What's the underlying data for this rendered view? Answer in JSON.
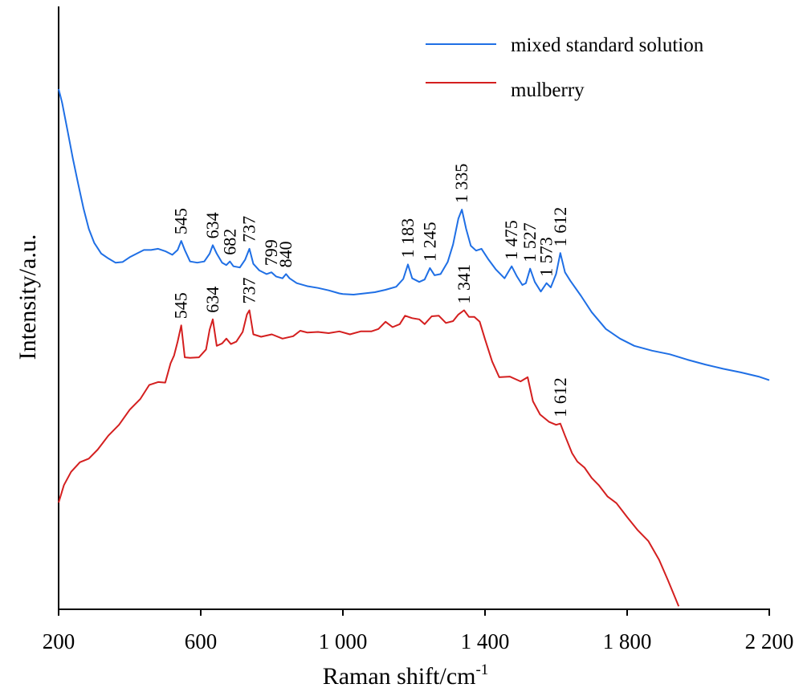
{
  "chart_data": {
    "type": "line",
    "title": "",
    "xlabel": "Raman shift/cm",
    "xlabel_superscript": "-1",
    "ylabel": "Intensity/a.u.",
    "xlim": [
      200,
      2200
    ],
    "ylim": [
      0,
      100
    ],
    "y_ticks_shown": false,
    "grid": false,
    "legend_position": "top-right",
    "x_ticks": [
      {
        "value": 200,
        "label": "200"
      },
      {
        "value": 600,
        "label": "600"
      },
      {
        "value": 1000,
        "label": "1 000"
      },
      {
        "value": 1400,
        "label": "1 400"
      },
      {
        "value": 1800,
        "label": "1 800"
      },
      {
        "value": 2200,
        "label": "2 200"
      }
    ],
    "series": [
      {
        "name": "mixed standard solution",
        "color": "#1f6fe5",
        "points": [
          [
            200,
            86.3
          ],
          [
            210,
            84.0
          ],
          [
            225,
            79.4
          ],
          [
            240,
            74.8
          ],
          [
            255,
            70.6
          ],
          [
            270,
            66.5
          ],
          [
            285,
            63.1
          ],
          [
            300,
            60.8
          ],
          [
            320,
            59.0
          ],
          [
            340,
            58.2
          ],
          [
            360,
            57.5
          ],
          [
            380,
            57.6
          ],
          [
            400,
            58.4
          ],
          [
            420,
            59.0
          ],
          [
            440,
            59.6
          ],
          [
            460,
            59.6
          ],
          [
            480,
            59.8
          ],
          [
            500,
            59.4
          ],
          [
            520,
            58.8
          ],
          [
            535,
            59.6
          ],
          [
            545,
            61.1
          ],
          [
            555,
            59.6
          ],
          [
            570,
            57.7
          ],
          [
            590,
            57.5
          ],
          [
            610,
            57.7
          ],
          [
            625,
            59.0
          ],
          [
            634,
            60.4
          ],
          [
            645,
            59.0
          ],
          [
            660,
            57.5
          ],
          [
            672,
            57.1
          ],
          [
            682,
            57.7
          ],
          [
            692,
            56.9
          ],
          [
            710,
            56.7
          ],
          [
            725,
            58.0
          ],
          [
            737,
            59.8
          ],
          [
            748,
            57.3
          ],
          [
            765,
            56.2
          ],
          [
            785,
            55.6
          ],
          [
            799,
            55.9
          ],
          [
            812,
            55.2
          ],
          [
            830,
            54.9
          ],
          [
            840,
            55.6
          ],
          [
            850,
            54.9
          ],
          [
            870,
            54.1
          ],
          [
            900,
            53.6
          ],
          [
            930,
            53.3
          ],
          [
            960,
            52.9
          ],
          [
            990,
            52.4
          ],
          [
            1000,
            52.3
          ],
          [
            1030,
            52.2
          ],
          [
            1060,
            52.4
          ],
          [
            1090,
            52.6
          ],
          [
            1120,
            53.0
          ],
          [
            1150,
            53.5
          ],
          [
            1170,
            54.8
          ],
          [
            1183,
            57.2
          ],
          [
            1195,
            54.9
          ],
          [
            1215,
            54.3
          ],
          [
            1230,
            54.7
          ],
          [
            1245,
            56.6
          ],
          [
            1258,
            55.4
          ],
          [
            1275,
            55.6
          ],
          [
            1295,
            57.6
          ],
          [
            1310,
            60.5
          ],
          [
            1325,
            64.8
          ],
          [
            1335,
            66.3
          ],
          [
            1347,
            63.1
          ],
          [
            1360,
            60.3
          ],
          [
            1375,
            59.5
          ],
          [
            1390,
            59.8
          ],
          [
            1410,
            58.0
          ],
          [
            1430,
            56.4
          ],
          [
            1455,
            54.9
          ],
          [
            1475,
            56.9
          ],
          [
            1490,
            55.2
          ],
          [
            1505,
            53.8
          ],
          [
            1515,
            54.1
          ],
          [
            1527,
            56.5
          ],
          [
            1540,
            54.3
          ],
          [
            1557,
            52.7
          ],
          [
            1573,
            54.1
          ],
          [
            1585,
            53.4
          ],
          [
            1600,
            55.6
          ],
          [
            1612,
            59.1
          ],
          [
            1625,
            55.9
          ],
          [
            1640,
            54.5
          ],
          [
            1670,
            52.0
          ],
          [
            1700,
            49.3
          ],
          [
            1740,
            46.5
          ],
          [
            1780,
            44.9
          ],
          [
            1820,
            43.7
          ],
          [
            1870,
            42.9
          ],
          [
            1920,
            42.3
          ],
          [
            1970,
            41.4
          ],
          [
            2020,
            40.6
          ],
          [
            2070,
            39.9
          ],
          [
            2120,
            39.3
          ],
          [
            2170,
            38.6
          ],
          [
            2200,
            38.0
          ]
        ]
      },
      {
        "name": "mulberry",
        "color": "#d41f1f",
        "points": [
          [
            200,
            17.7
          ],
          [
            215,
            20.6
          ],
          [
            235,
            22.8
          ],
          [
            260,
            24.4
          ],
          [
            285,
            25.0
          ],
          [
            310,
            26.5
          ],
          [
            340,
            28.8
          ],
          [
            370,
            30.6
          ],
          [
            400,
            33.1
          ],
          [
            430,
            34.9
          ],
          [
            455,
            37.2
          ],
          [
            480,
            37.7
          ],
          [
            500,
            37.6
          ],
          [
            515,
            40.8
          ],
          [
            525,
            42.1
          ],
          [
            535,
            44.4
          ],
          [
            545,
            47.1
          ],
          [
            555,
            41.8
          ],
          [
            570,
            41.7
          ],
          [
            595,
            41.8
          ],
          [
            615,
            43.1
          ],
          [
            625,
            46.4
          ],
          [
            634,
            48.1
          ],
          [
            645,
            43.7
          ],
          [
            660,
            44.1
          ],
          [
            672,
            44.9
          ],
          [
            685,
            44.0
          ],
          [
            700,
            44.4
          ],
          [
            718,
            46.0
          ],
          [
            730,
            48.9
          ],
          [
            737,
            49.6
          ],
          [
            748,
            45.6
          ],
          [
            770,
            45.2
          ],
          [
            800,
            45.6
          ],
          [
            830,
            44.9
          ],
          [
            860,
            45.3
          ],
          [
            880,
            46.2
          ],
          [
            900,
            45.9
          ],
          [
            930,
            46.0
          ],
          [
            960,
            45.8
          ],
          [
            990,
            46.1
          ],
          [
            1020,
            45.6
          ],
          [
            1050,
            46.1
          ],
          [
            1080,
            46.1
          ],
          [
            1100,
            46.5
          ],
          [
            1120,
            47.7
          ],
          [
            1140,
            46.8
          ],
          [
            1160,
            47.3
          ],
          [
            1175,
            48.7
          ],
          [
            1195,
            48.3
          ],
          [
            1215,
            48.1
          ],
          [
            1230,
            47.3
          ],
          [
            1250,
            48.6
          ],
          [
            1270,
            48.7
          ],
          [
            1290,
            47.5
          ],
          [
            1310,
            47.8
          ],
          [
            1325,
            48.9
          ],
          [
            1341,
            49.6
          ],
          [
            1355,
            48.5
          ],
          [
            1370,
            48.5
          ],
          [
            1385,
            47.7
          ],
          [
            1400,
            44.8
          ],
          [
            1420,
            41.1
          ],
          [
            1440,
            38.5
          ],
          [
            1470,
            38.6
          ],
          [
            1500,
            37.8
          ],
          [
            1520,
            38.5
          ],
          [
            1535,
            34.5
          ],
          [
            1555,
            32.3
          ],
          [
            1580,
            31.1
          ],
          [
            1600,
            30.6
          ],
          [
            1612,
            30.8
          ],
          [
            1625,
            28.8
          ],
          [
            1645,
            25.9
          ],
          [
            1660,
            24.5
          ],
          [
            1680,
            23.5
          ],
          [
            1700,
            21.8
          ],
          [
            1720,
            20.6
          ],
          [
            1745,
            18.7
          ],
          [
            1770,
            17.6
          ],
          [
            1800,
            15.3
          ],
          [
            1830,
            13.1
          ],
          [
            1860,
            11.3
          ],
          [
            1890,
            8.2
          ],
          [
            1915,
            4.8
          ],
          [
            1945,
            0.5
          ]
        ]
      }
    ],
    "annotations": [
      {
        "series": 0,
        "x": 545,
        "text": "545"
      },
      {
        "series": 0,
        "x": 634,
        "text": "634"
      },
      {
        "series": 0,
        "x": 682,
        "text": "682"
      },
      {
        "series": 0,
        "x": 737,
        "text": "737"
      },
      {
        "series": 0,
        "x": 799,
        "text": "799"
      },
      {
        "series": 0,
        "x": 840,
        "text": "840"
      },
      {
        "series": 0,
        "x": 1183,
        "text": "1 183"
      },
      {
        "series": 0,
        "x": 1245,
        "text": "1 245"
      },
      {
        "series": 0,
        "x": 1335,
        "text": "1 335"
      },
      {
        "series": 0,
        "x": 1475,
        "text": "1 475"
      },
      {
        "series": 0,
        "x": 1527,
        "text": "1 527"
      },
      {
        "series": 0,
        "x": 1573,
        "text": "1 573"
      },
      {
        "series": 0,
        "x": 1612,
        "text": "1 612"
      },
      {
        "series": 1,
        "x": 545,
        "text": "545"
      },
      {
        "series": 1,
        "x": 634,
        "text": "634"
      },
      {
        "series": 1,
        "x": 737,
        "text": "737"
      },
      {
        "series": 1,
        "x": 1341,
        "text": "1 341"
      },
      {
        "series": 1,
        "x": 1612,
        "text": "1 612"
      }
    ]
  }
}
